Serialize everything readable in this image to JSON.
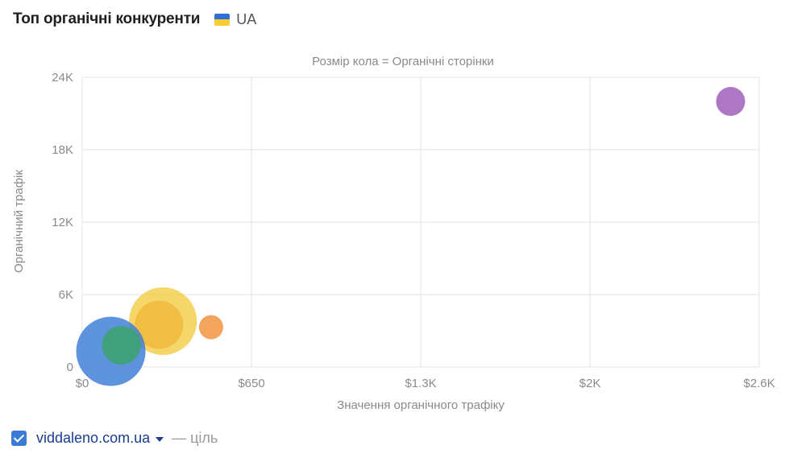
{
  "header": {
    "title": "Топ органічні конкуренти",
    "flag_icon": "ukraine-flag-icon",
    "country": "UA"
  },
  "legend": {
    "domain": "viddaleno.com.ua",
    "target_label": "— ціль",
    "checkbox_checked": true,
    "checkbox_color": "#3a7bd5"
  },
  "chart_data": {
    "type": "scatter",
    "subtitle": "Розмір кола = Органічні сторінки",
    "xlabel": "Значення органічного трафіку",
    "ylabel": "Органічний трафік",
    "xlim": [
      0,
      2600
    ],
    "ylim": [
      0,
      24000
    ],
    "x_ticks": [
      0,
      650,
      1300,
      1950,
      2600
    ],
    "x_tick_labels": [
      "$0",
      "$650",
      "$1.3K",
      "$2K",
      "$2.6K"
    ],
    "y_ticks": [
      0,
      6000,
      12000,
      18000,
      24000
    ],
    "y_tick_labels": [
      "0",
      "6K",
      "12K",
      "18K",
      "24K"
    ],
    "grid": true,
    "series": [
      {
        "x": 2490,
        "y": 22000,
        "size": 18,
        "color": "#9b59b6"
      },
      {
        "x": 310,
        "y": 3800,
        "size": 42,
        "color": "#f3cd47"
      },
      {
        "x": 295,
        "y": 3500,
        "size": 30,
        "color": "#f0b73a"
      },
      {
        "x": 495,
        "y": 3300,
        "size": 15,
        "color": "#f0913a"
      },
      {
        "x": 110,
        "y": 1300,
        "size": 43,
        "color": "#3a7bd5"
      },
      {
        "x": 150,
        "y": 1800,
        "size": 24,
        "color": "#3aa56a"
      }
    ]
  }
}
